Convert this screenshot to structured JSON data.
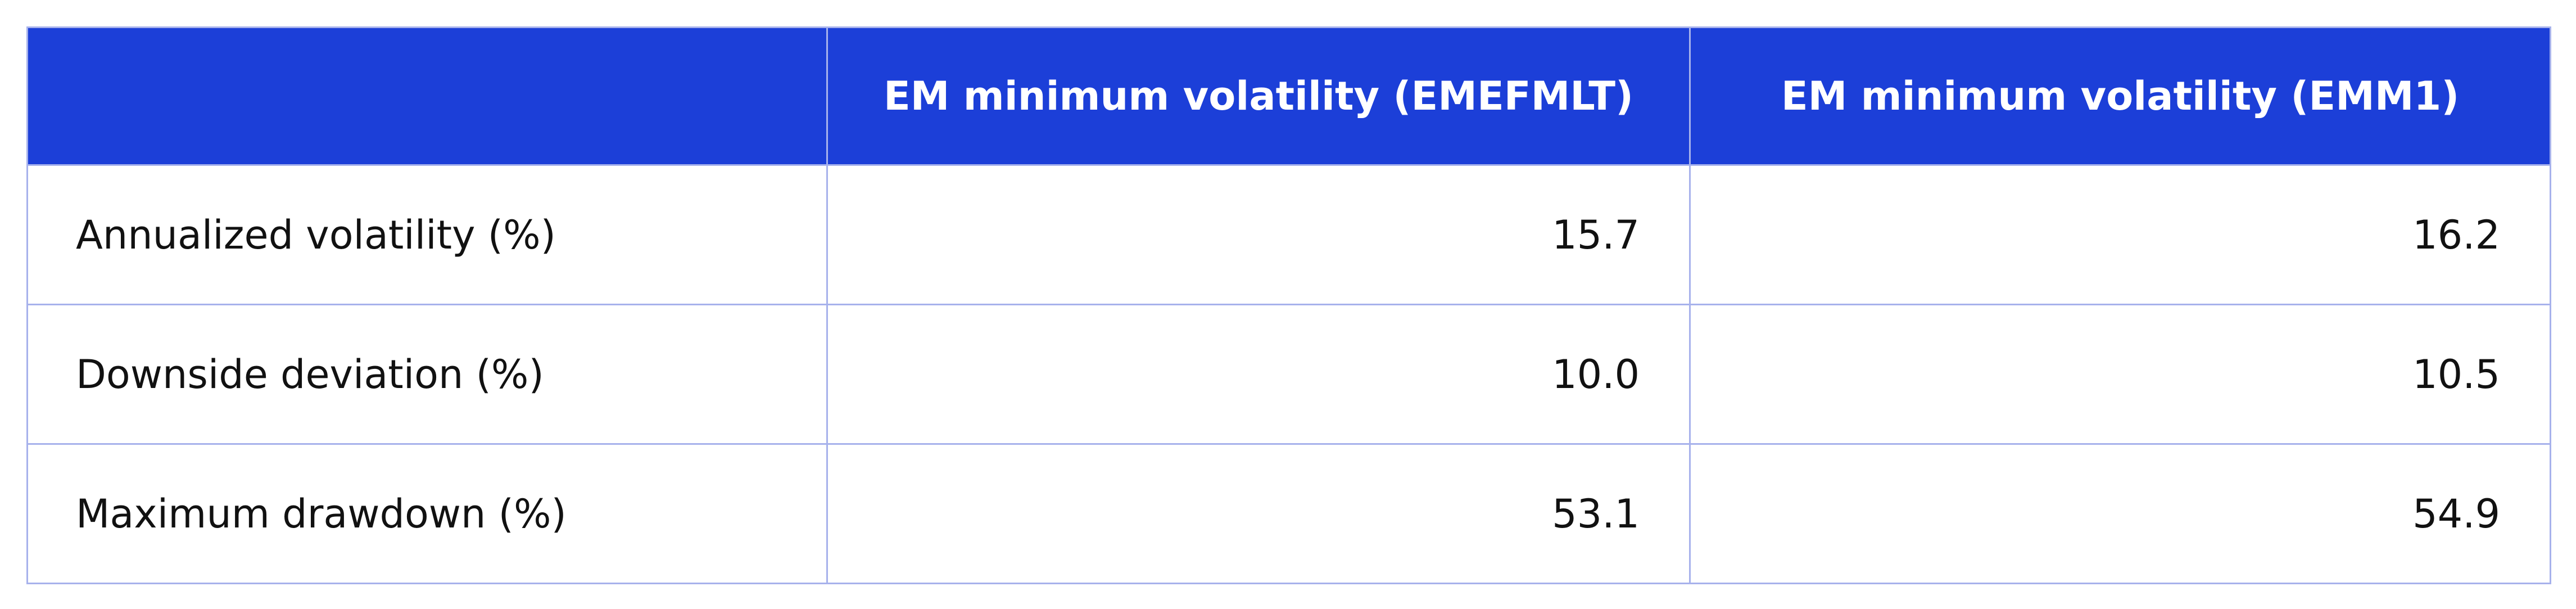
{
  "table": {
    "columns": [
      "EM minimum volatility (EMEFMLT)",
      "EM minimum volatility (EMM1)"
    ],
    "rows": [
      [
        "Annualized volatility (%)",
        "15.7",
        "16.2"
      ],
      [
        "Downside deviation (%)",
        "10.0",
        "10.5"
      ],
      [
        "Maximum drawdown (%)",
        "53.1",
        "54.9"
      ]
    ]
  }
}
